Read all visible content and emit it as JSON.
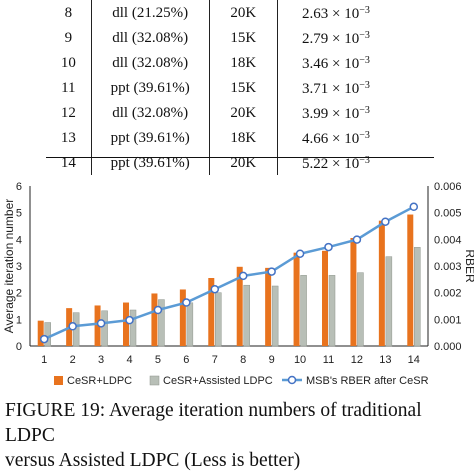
{
  "table": {
    "rows": [
      {
        "id": "8",
        "method": "dll (21.25%)",
        "size": "20K",
        "mantissa": "2.63",
        "base": "× 10",
        "exp": "−3"
      },
      {
        "id": "9",
        "method": "dll (32.08%)",
        "size": "15K",
        "mantissa": "2.79",
        "base": "× 10",
        "exp": "−3"
      },
      {
        "id": "10",
        "method": "dll (32.08%)",
        "size": "18K",
        "mantissa": "3.46",
        "base": "× 10",
        "exp": "−3"
      },
      {
        "id": "11",
        "method": "ppt (39.61%)",
        "size": "15K",
        "mantissa": "3.71",
        "base": "× 10",
        "exp": "−3"
      },
      {
        "id": "12",
        "method": "dll (32.08%)",
        "size": "20K",
        "mantissa": "3.99",
        "base": "× 10",
        "exp": "−3"
      },
      {
        "id": "13",
        "method": "ppt (39.61%)",
        "size": "18K",
        "mantissa": "4.66",
        "base": "× 10",
        "exp": "−3"
      },
      {
        "id": "14",
        "method": "ppt (39.61%)",
        "size": "20K",
        "mantissa": "5.22",
        "base": "× 10",
        "exp": "−3"
      }
    ]
  },
  "chart_data": {
    "type": "bar",
    "categories": [
      "1",
      "2",
      "3",
      "4",
      "5",
      "6",
      "7",
      "8",
      "9",
      "10",
      "11",
      "12",
      "13",
      "14"
    ],
    "series": [
      {
        "name": "CeSR+LDPC",
        "type": "bar",
        "axis": "left",
        "color": "#e8731e",
        "values": [
          0.95,
          1.42,
          1.52,
          1.63,
          1.97,
          2.12,
          2.55,
          2.97,
          2.93,
          3.5,
          3.57,
          4.05,
          4.7,
          4.93
        ]
      },
      {
        "name": "CeSR+Assisted LDPC",
        "type": "bar",
        "axis": "left",
        "color": "#b8bfb7",
        "values": [
          0.88,
          1.25,
          1.32,
          1.35,
          1.74,
          1.62,
          2.0,
          2.28,
          2.25,
          2.65,
          2.65,
          2.75,
          3.35,
          3.7
        ]
      },
      {
        "name": "MSB's RBER after CeSR",
        "type": "line",
        "axis": "right",
        "color": "#5b9bd5",
        "values": [
          0.00026,
          0.00074,
          0.00085,
          0.00097,
          0.00135,
          0.00163,
          0.00213,
          0.00263,
          0.00279,
          0.00346,
          0.00371,
          0.00399,
          0.00466,
          0.00522
        ]
      }
    ],
    "ylabel": "Average iteration number",
    "y2label": "RBER",
    "ylim": [
      0,
      6
    ],
    "y2lim": [
      0,
      0.006
    ],
    "yticks": [
      "0",
      "1",
      "2",
      "3",
      "4",
      "5",
      "6"
    ],
    "y2ticks": [
      "0.000",
      "0.001",
      "0.002",
      "0.003",
      "0.004",
      "0.005",
      "0.006"
    ],
    "grid": false,
    "legend": "bottom"
  },
  "caption": {
    "line1": "FIGURE 19: Average iteration numbers of traditional LDPC",
    "line2": "versus Assisted LDPC (Less is better)"
  },
  "colors": {
    "text": "#111111",
    "axis": "#222222"
  }
}
